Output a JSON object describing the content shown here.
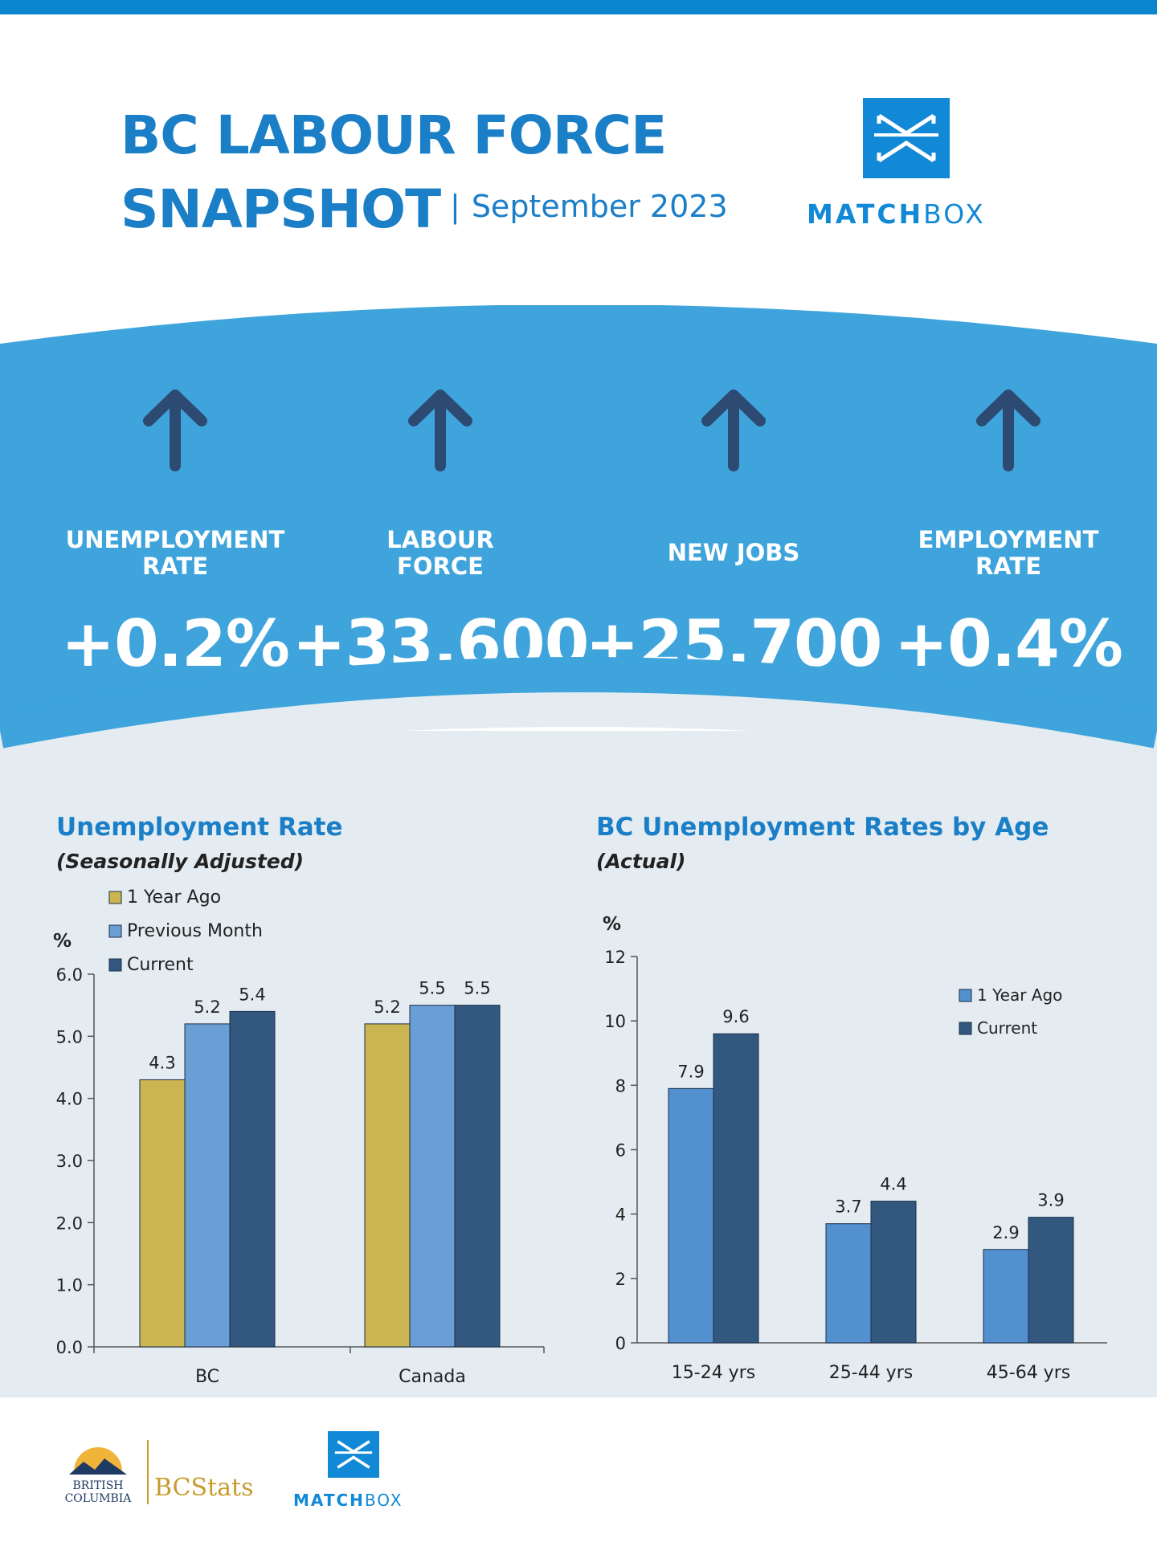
{
  "header": {
    "title_line1": "BC LABOUR FORCE",
    "title_line2": "SNAPSHOT",
    "separator": "|",
    "period": "September 2023",
    "logo_bold": "MATCH",
    "logo_light": "BOX"
  },
  "stats": [
    {
      "label": "UNEMPLOYMENT RATE",
      "value": "+0.2%",
      "icon": "up-arrow-icon"
    },
    {
      "label": "LABOUR FORCE",
      "value": "+33,600",
      "icon": "up-arrow-icon"
    },
    {
      "label": "NEW JOBS",
      "value": "+25,700",
      "icon": "up-arrow-icon"
    },
    {
      "label": "EMPLOYMENT RATE",
      "value": "+0.4%",
      "icon": "up-arrow-icon"
    }
  ],
  "colors": {
    "brand_blue": "#1b7fc8",
    "band_blue": "#3fa4dc",
    "arrow": "#2d4a73",
    "one_year_ago_left": "#cbb550",
    "previous_month": "#6a9fd6",
    "current": "#33587f",
    "one_year_ago_right": "#5290cf",
    "panel_bg": "#e4ecf1"
  },
  "chart_data": [
    {
      "type": "bar",
      "title": "Unemployment Rate",
      "subtitle": "(Seasonally Adjusted)",
      "ylabel": "%",
      "categories": [
        "BC",
        "Canada"
      ],
      "series": [
        {
          "name": "1 Year Ago",
          "values": [
            4.3,
            5.2
          ]
        },
        {
          "name": "Previous Month",
          "values": [
            5.2,
            5.5
          ]
        },
        {
          "name": "Current",
          "values": [
            5.4,
            5.5
          ]
        }
      ],
      "yticks": [
        "0.0",
        "1.0",
        "2.0",
        "3.0",
        "4.0",
        "5.0",
        "6.0"
      ],
      "ylim": [
        0,
        6
      ],
      "grid": false,
      "legend": "top-left"
    },
    {
      "type": "bar",
      "title": "BC Unemployment Rates by Age",
      "subtitle": "(Actual)",
      "ylabel": "%",
      "categories": [
        "15-24 yrs",
        "25-44 yrs",
        "45-64 yrs"
      ],
      "series": [
        {
          "name": "1 Year Ago",
          "values": [
            7.9,
            3.7,
            2.9
          ]
        },
        {
          "name": "Current",
          "values": [
            9.6,
            4.4,
            3.9
          ]
        }
      ],
      "yticks": [
        "0",
        "2",
        "4",
        "6",
        "8",
        "10",
        "12"
      ],
      "ylim": [
        0,
        12
      ],
      "grid": false,
      "legend": "top-right"
    }
  ],
  "footer": {
    "bc_line1": "BRITISH",
    "bc_line2": "COLUMBIA",
    "bcstats": "BCStats",
    "logo_bold": "MATCH",
    "logo_light": "BOX"
  }
}
